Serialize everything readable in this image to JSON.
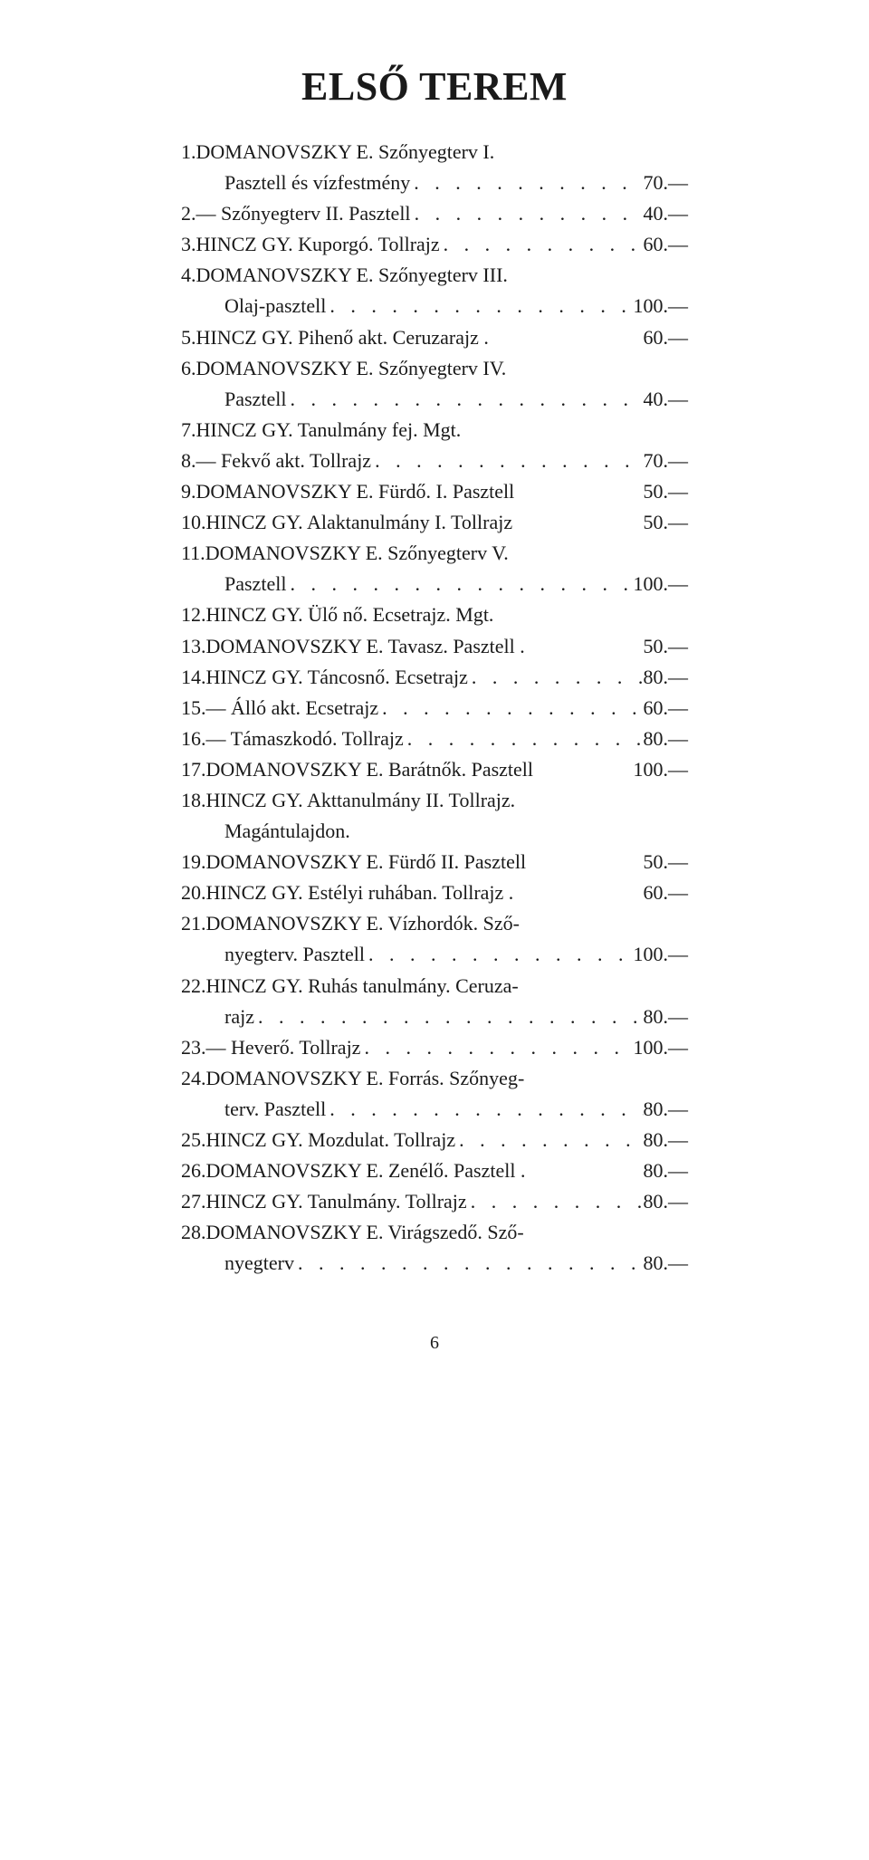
{
  "title": "ELSŐ TEREM",
  "page_number": "6",
  "leader_glyph": "  .  .  .  .  .  .  .  .  .  .  .  .  .  .  .  .  .  .  .  .  .  .  .",
  "entries": [
    {
      "lines": [
        {
          "num": "1.",
          "text": "DOMANOVSZKY E. Szőnyegterv I.",
          "price": ""
        },
        {
          "num": "",
          "text": "Pasztell és vízfestmény",
          "price": "70.—",
          "leader": true
        }
      ]
    },
    {
      "lines": [
        {
          "num": "2.",
          "text": "— Szőnyegterv II. Pasztell",
          "price": "40.—",
          "leader": true
        }
      ]
    },
    {
      "lines": [
        {
          "num": "3.",
          "text": "HINCZ GY. Kuporgó. Tollrajz",
          "price": "60.—",
          "leader": true
        }
      ]
    },
    {
      "lines": [
        {
          "num": "4.",
          "text": "DOMANOVSZKY E. Szőnyegterv III.",
          "price": ""
        },
        {
          "num": "",
          "text": "Olaj-pasztell",
          "price": "100.—",
          "leader": true
        }
      ]
    },
    {
      "lines": [
        {
          "num": "5.",
          "text": "HINCZ GY. Pihenő akt. Ceruzarajz .",
          "price": "60.—"
        }
      ]
    },
    {
      "lines": [
        {
          "num": "6.",
          "text": "DOMANOVSZKY E. Szőnyegterv IV.",
          "price": ""
        },
        {
          "num": "",
          "text": "Pasztell",
          "price": "40.—",
          "leader": true
        }
      ]
    },
    {
      "lines": [
        {
          "num": "7.",
          "text": "HINCZ GY. Tanulmány fej. Mgt.",
          "price": ""
        }
      ]
    },
    {
      "lines": [
        {
          "num": "8.",
          "text": "— Fekvő akt. Tollrajz",
          "price": "70.—",
          "leader": true
        }
      ]
    },
    {
      "lines": [
        {
          "num": "9.",
          "text": "DOMANOVSZKY E. Fürdő. I. Pasztell",
          "price": "50.—"
        }
      ]
    },
    {
      "lines": [
        {
          "num": "10.",
          "text": "HINCZ GY. Alaktanulmány I. Tollrajz",
          "price": "50.—"
        }
      ]
    },
    {
      "lines": [
        {
          "num": "11.",
          "text": "DOMANOVSZKY E. Szőnyegterv V.",
          "price": ""
        },
        {
          "num": "",
          "text": "Pasztell",
          "price": "100.—",
          "leader": true
        }
      ]
    },
    {
      "lines": [
        {
          "num": "12.",
          "text": "HINCZ GY. Ülő nő. Ecsetrajz. Mgt.",
          "price": ""
        }
      ]
    },
    {
      "lines": [
        {
          "num": "13.",
          "text": "DOMANOVSZKY E. Tavasz. Pasztell .",
          "price": "50.—"
        }
      ]
    },
    {
      "lines": [
        {
          "num": "14.",
          "text": "HINCZ GY. Táncosnő. Ecsetrajz",
          "price": "80.—",
          "leader": true
        }
      ]
    },
    {
      "lines": [
        {
          "num": "15.",
          "text": "— Álló akt. Ecsetrajz",
          "price": "60.—",
          "leader": true
        }
      ]
    },
    {
      "lines": [
        {
          "num": "16.",
          "text": "— Támaszkodó. Tollrajz",
          "price": "80.—",
          "leader": true
        }
      ]
    },
    {
      "lines": [
        {
          "num": "17.",
          "text": "DOMANOVSZKY E. Barátnők. Pasztell",
          "price": "100.—"
        }
      ]
    },
    {
      "lines": [
        {
          "num": "18.",
          "text": "HINCZ GY. Akttanulmány II. Tollrajz.",
          "price": ""
        },
        {
          "num": "",
          "text": "Magántulajdon.",
          "price": ""
        }
      ]
    },
    {
      "lines": [
        {
          "num": "19.",
          "text": "DOMANOVSZKY E. Fürdő II. Pasztell",
          "price": "50.—"
        }
      ]
    },
    {
      "lines": [
        {
          "num": "20.",
          "text": "HINCZ GY. Estélyi ruhában. Tollrajz .",
          "price": "60.—"
        }
      ]
    },
    {
      "lines": [
        {
          "num": "21.",
          "text": "DOMANOVSZKY E. Vízhordók. Sző-",
          "price": ""
        },
        {
          "num": "",
          "text": "nyegterv. Pasztell",
          "price": "100.—",
          "leader": true
        }
      ]
    },
    {
      "lines": [
        {
          "num": "22.",
          "text": "HINCZ GY. Ruhás tanulmány. Ceruza-",
          "price": ""
        },
        {
          "num": "",
          "text": "rajz",
          "price": "80.—",
          "leader": true
        }
      ]
    },
    {
      "lines": [
        {
          "num": "23.",
          "text": "— Heverő. Tollrajz",
          "price": "100.—",
          "leader": true
        }
      ]
    },
    {
      "lines": [
        {
          "num": "24.",
          "text": "DOMANOVSZKY E. Forrás. Szőnyeg-",
          "price": ""
        },
        {
          "num": "",
          "text": "terv. Pasztell",
          "price": "80.—",
          "leader": true
        }
      ]
    },
    {
      "lines": [
        {
          "num": "25.",
          "text": "HINCZ GY. Mozdulat. Tollrajz",
          "price": "80.—",
          "leader": true
        }
      ]
    },
    {
      "lines": [
        {
          "num": "26.",
          "text": "DOMANOVSZKY E. Zenélő. Pasztell .",
          "price": "80.—"
        }
      ]
    },
    {
      "lines": [
        {
          "num": "27.",
          "text": "HINCZ GY. Tanulmány. Tollrajz",
          "price": "80.—",
          "leader": true
        }
      ]
    },
    {
      "lines": [
        {
          "num": "28.",
          "text": "DOMANOVSZKY E. Virágszedő. Sző-",
          "price": ""
        },
        {
          "num": "",
          "text": "nyegterv",
          "price": "80.—",
          "leader": true
        }
      ]
    }
  ]
}
